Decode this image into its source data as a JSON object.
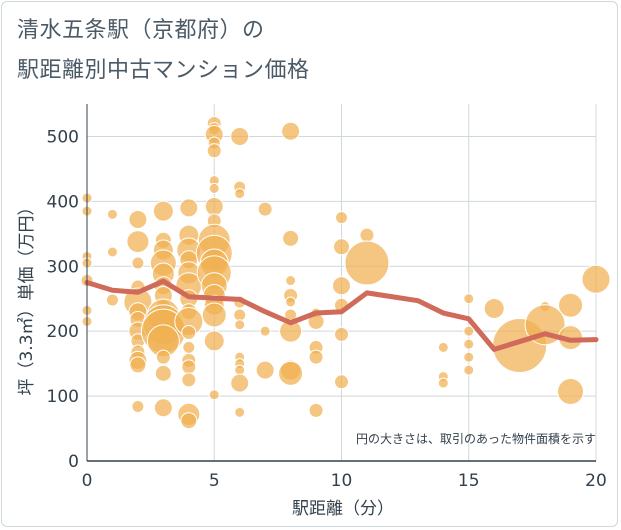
{
  "chart_data": {
    "type": "scatter",
    "title_lines": [
      "清水五条駅（京都府）の",
      "駅距離別中古マンション価格"
    ],
    "xlabel": "駅距離（分）",
    "ylabel": "坪（3.3㎡）単価（万円）",
    "note": "円の大きさは、取引のあった物件面積を示す",
    "xlim": [
      0,
      20
    ],
    "ylim": [
      0,
      550
    ],
    "x_ticks": [
      0,
      5,
      10,
      15,
      20
    ],
    "y_ticks": [
      0,
      100,
      200,
      300,
      400,
      500
    ],
    "grid": true,
    "colors": {
      "bubble": "#f0b050",
      "line": "#d06a5a",
      "grid": "#cfd8dc",
      "text": "#33414c"
    },
    "points": [
      {
        "x": 0,
        "y": 405,
        "s": 5
      },
      {
        "x": 0,
        "y": 385,
        "s": 5
      },
      {
        "x": 0,
        "y": 315,
        "s": 5
      },
      {
        "x": 0,
        "y": 305,
        "s": 5
      },
      {
        "x": 0,
        "y": 232,
        "s": 5
      },
      {
        "x": 0,
        "y": 215,
        "s": 5
      },
      {
        "x": 0,
        "y": 278,
        "s": 6
      },
      {
        "x": 1,
        "y": 380,
        "s": 5
      },
      {
        "x": 1,
        "y": 322,
        "s": 5
      },
      {
        "x": 1,
        "y": 248,
        "s": 6
      },
      {
        "x": 2,
        "y": 372,
        "s": 9
      },
      {
        "x": 2,
        "y": 338,
        "s": 11
      },
      {
        "x": 2,
        "y": 305,
        "s": 6
      },
      {
        "x": 2,
        "y": 268,
        "s": 7
      },
      {
        "x": 2,
        "y": 245,
        "s": 14
      },
      {
        "x": 2,
        "y": 230,
        "s": 9
      },
      {
        "x": 2,
        "y": 218,
        "s": 8
      },
      {
        "x": 2,
        "y": 200,
        "s": 9
      },
      {
        "x": 2,
        "y": 185,
        "s": 7
      },
      {
        "x": 2,
        "y": 168,
        "s": 7
      },
      {
        "x": 2,
        "y": 155,
        "s": 9
      },
      {
        "x": 2,
        "y": 148,
        "s": 8
      },
      {
        "x": 2,
        "y": 84,
        "s": 6
      },
      {
        "x": 3,
        "y": 385,
        "s": 10
      },
      {
        "x": 3,
        "y": 340,
        "s": 8
      },
      {
        "x": 3,
        "y": 325,
        "s": 10
      },
      {
        "x": 3,
        "y": 305,
        "s": 13
      },
      {
        "x": 3,
        "y": 288,
        "s": 11
      },
      {
        "x": 3,
        "y": 270,
        "s": 9
      },
      {
        "x": 3,
        "y": 255,
        "s": 9
      },
      {
        "x": 3,
        "y": 238,
        "s": 7
      },
      {
        "x": 3,
        "y": 225,
        "s": 16
      },
      {
        "x": 3,
        "y": 210,
        "s": 20
      },
      {
        "x": 3,
        "y": 200,
        "s": 22
      },
      {
        "x": 3,
        "y": 185,
        "s": 16
      },
      {
        "x": 3,
        "y": 160,
        "s": 7
      },
      {
        "x": 3,
        "y": 135,
        "s": 8
      },
      {
        "x": 3,
        "y": 82,
        "s": 9
      },
      {
        "x": 4,
        "y": 390,
        "s": 9
      },
      {
        "x": 4,
        "y": 348,
        "s": 10
      },
      {
        "x": 4,
        "y": 325,
        "s": 12
      },
      {
        "x": 4,
        "y": 310,
        "s": 9
      },
      {
        "x": 4,
        "y": 290,
        "s": 11
      },
      {
        "x": 4,
        "y": 270,
        "s": 13
      },
      {
        "x": 4,
        "y": 250,
        "s": 9
      },
      {
        "x": 4,
        "y": 230,
        "s": 8
      },
      {
        "x": 4,
        "y": 215,
        "s": 14
      },
      {
        "x": 4,
        "y": 198,
        "s": 7
      },
      {
        "x": 4,
        "y": 175,
        "s": 6
      },
      {
        "x": 4,
        "y": 155,
        "s": 7
      },
      {
        "x": 4,
        "y": 145,
        "s": 7
      },
      {
        "x": 4,
        "y": 125,
        "s": 7
      },
      {
        "x": 4,
        "y": 72,
        "s": 11
      },
      {
        "x": 4,
        "y": 62,
        "s": 8
      },
      {
        "x": 5,
        "y": 520,
        "s": 7
      },
      {
        "x": 5,
        "y": 512,
        "s": 6
      },
      {
        "x": 5,
        "y": 503,
        "s": 9
      },
      {
        "x": 5,
        "y": 490,
        "s": 6
      },
      {
        "x": 5,
        "y": 478,
        "s": 7
      },
      {
        "x": 5,
        "y": 432,
        "s": 5
      },
      {
        "x": 5,
        "y": 420,
        "s": 5
      },
      {
        "x": 5,
        "y": 392,
        "s": 9
      },
      {
        "x": 5,
        "y": 370,
        "s": 7
      },
      {
        "x": 5,
        "y": 340,
        "s": 16
      },
      {
        "x": 5,
        "y": 320,
        "s": 18
      },
      {
        "x": 5,
        "y": 305,
        "s": 14
      },
      {
        "x": 5,
        "y": 290,
        "s": 17
      },
      {
        "x": 5,
        "y": 270,
        "s": 13
      },
      {
        "x": 5,
        "y": 255,
        "s": 11
      },
      {
        "x": 5,
        "y": 240,
        "s": 10
      },
      {
        "x": 5,
        "y": 225,
        "s": 12
      },
      {
        "x": 5,
        "y": 185,
        "s": 10
      },
      {
        "x": 5,
        "y": 102,
        "s": 5
      },
      {
        "x": 6,
        "y": 500,
        "s": 9
      },
      {
        "x": 6,
        "y": 422,
        "s": 6
      },
      {
        "x": 6,
        "y": 412,
        "s": 5
      },
      {
        "x": 6,
        "y": 245,
        "s": 6
      },
      {
        "x": 6,
        "y": 225,
        "s": 6
      },
      {
        "x": 6,
        "y": 210,
        "s": 5
      },
      {
        "x": 6,
        "y": 160,
        "s": 5
      },
      {
        "x": 6,
        "y": 150,
        "s": 5
      },
      {
        "x": 6,
        "y": 140,
        "s": 5
      },
      {
        "x": 6,
        "y": 120,
        "s": 9
      },
      {
        "x": 6,
        "y": 75,
        "s": 5
      },
      {
        "x": 7,
        "y": 388,
        "s": 7
      },
      {
        "x": 7,
        "y": 200,
        "s": 5
      },
      {
        "x": 7,
        "y": 140,
        "s": 9
      },
      {
        "x": 8,
        "y": 508,
        "s": 9
      },
      {
        "x": 8,
        "y": 343,
        "s": 8
      },
      {
        "x": 8,
        "y": 278,
        "s": 5
      },
      {
        "x": 8,
        "y": 255,
        "s": 7
      },
      {
        "x": 8,
        "y": 245,
        "s": 5
      },
      {
        "x": 8,
        "y": 225,
        "s": 6
      },
      {
        "x": 8,
        "y": 200,
        "s": 11
      },
      {
        "x": 8,
        "y": 140,
        "s": 10
      },
      {
        "x": 8,
        "y": 135,
        "s": 12
      },
      {
        "x": 9,
        "y": 228,
        "s": 5
      },
      {
        "x": 9,
        "y": 215,
        "s": 8
      },
      {
        "x": 9,
        "y": 175,
        "s": 7
      },
      {
        "x": 9,
        "y": 160,
        "s": 7
      },
      {
        "x": 9,
        "y": 78,
        "s": 7
      },
      {
        "x": 10,
        "y": 375,
        "s": 6
      },
      {
        "x": 10,
        "y": 330,
        "s": 8
      },
      {
        "x": 10,
        "y": 270,
        "s": 9
      },
      {
        "x": 10,
        "y": 240,
        "s": 7
      },
      {
        "x": 10,
        "y": 195,
        "s": 7
      },
      {
        "x": 10,
        "y": 122,
        "s": 7
      },
      {
        "x": 11,
        "y": 348,
        "s": 7
      },
      {
        "x": 11,
        "y": 305,
        "s": 22
      },
      {
        "x": 14,
        "y": 175,
        "s": 5
      },
      {
        "x": 14,
        "y": 130,
        "s": 5
      },
      {
        "x": 14,
        "y": 120,
        "s": 5
      },
      {
        "x": 15,
        "y": 250,
        "s": 5
      },
      {
        "x": 15,
        "y": 200,
        "s": 5
      },
      {
        "x": 15,
        "y": 180,
        "s": 5
      },
      {
        "x": 15,
        "y": 160,
        "s": 5
      },
      {
        "x": 15,
        "y": 140,
        "s": 5
      },
      {
        "x": 16,
        "y": 235,
        "s": 10
      },
      {
        "x": 17,
        "y": 178,
        "s": 27
      },
      {
        "x": 18,
        "y": 238,
        "s": 5
      },
      {
        "x": 18,
        "y": 210,
        "s": 20
      },
      {
        "x": 19,
        "y": 240,
        "s": 12
      },
      {
        "x": 19,
        "y": 190,
        "s": 12
      },
      {
        "x": 19,
        "y": 107,
        "s": 13
      },
      {
        "x": 20,
        "y": 280,
        "s": 14
      }
    ],
    "trend_line": {
      "x": [
        0,
        1,
        2,
        3,
        4,
        5,
        6,
        7,
        8,
        9,
        10,
        11,
        12,
        13,
        14,
        15,
        16,
        17,
        18,
        19,
        20
      ],
      "y": [
        275,
        263,
        260,
        277,
        253,
        251,
        249,
        230,
        213,
        228,
        230,
        259,
        253,
        247,
        228,
        219,
        172,
        184,
        196,
        186,
        187
      ]
    }
  }
}
